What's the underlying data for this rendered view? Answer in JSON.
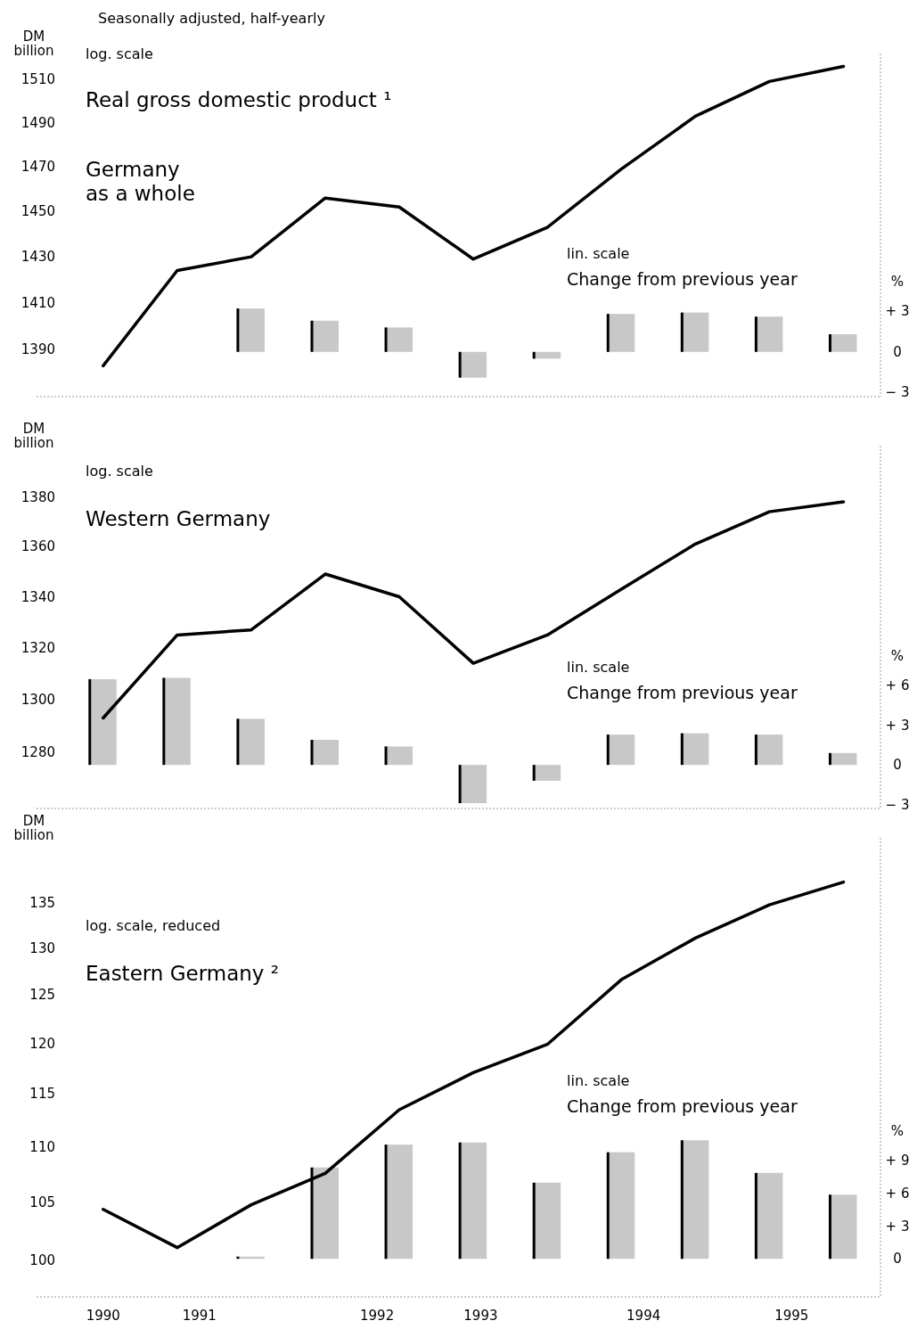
{
  "chart_data": [
    {
      "type": "line",
      "title": "Real gross domestic product ¹",
      "subtitle": "Germany\nas a whole",
      "ylabel": "DM\nbillion",
      "y2label": "%",
      "log": "y",
      "tick_labels": "y",
      "annotations": [
        "log. scale",
        "lin. scale",
        "Change from previous year",
        "Seasonally adjusted, half-yearly"
      ],
      "xlim": [
        1989.8,
        1995.5
      ],
      "ylim": [
        1370,
        1522
      ],
      "yticks": [
        1390,
        1410,
        1430,
        1450,
        1470,
        1490,
        1510
      ],
      "y2lim": [
        -3.3,
        22
      ],
      "y2ticks": [
        {
          "value": -3,
          "label": "− 3"
        },
        {
          "value": 0,
          "label": "0"
        },
        {
          "value": 3,
          "label": "+ 3"
        }
      ],
      "series": [
        {
          "color": "#000000",
          "x": [
            1990.25,
            1990.75,
            1991.25,
            1991.75,
            1992.25,
            1992.75,
            1993.25,
            1993.75,
            1994.25,
            1994.75,
            1995.25
          ],
          "values": [
            1383,
            1424,
            1430,
            1456,
            1452,
            1429,
            1443,
            1469,
            1493,
            1509,
            1516
          ]
        },
        {
          "type": "bar",
          "axis": "y2",
          "color": "#c8c8c8",
          "x": [
            1991.25,
            1991.75,
            1992.25,
            1992.75,
            1993.25,
            1993.75,
            1994.25,
            1994.75,
            1995.25
          ],
          "values": [
            3.2,
            2.3,
            1.8,
            -1.9,
            -0.5,
            2.8,
            2.9,
            2.6,
            1.3
          ]
        }
      ]
    },
    {
      "type": "line",
      "title": "Western Germany",
      "ylabel": "DM\nbillion",
      "y2label": "%",
      "log": "y",
      "tick_labels": "y",
      "annotations": [
        "log. scale",
        "lin. scale",
        "Change from previous year"
      ],
      "xlim": [
        1989.8,
        1995.5
      ],
      "ylim": [
        1259,
        1401
      ],
      "yticks": [
        1280,
        1300,
        1320,
        1340,
        1360,
        1380
      ],
      "y2lim": [
        -3.3,
        24.2
      ],
      "y2ticks": [
        {
          "value": -3,
          "label": "− 3"
        },
        {
          "value": 0,
          "label": "0"
        },
        {
          "value": 3,
          "label": "+ 3"
        },
        {
          "value": 6,
          "label": "+ 6"
        }
      ],
      "series": [
        {
          "color": "#000000",
          "x": [
            1990.25,
            1990.75,
            1991.25,
            1991.75,
            1992.25,
            1992.75,
            1993.25,
            1993.75,
            1994.25,
            1994.75,
            1995.25
          ],
          "values": [
            1293,
            1325,
            1327,
            1349,
            1340,
            1314,
            1325,
            1343,
            1361,
            1374,
            1378
          ]
        },
        {
          "type": "bar",
          "axis": "y2",
          "color": "#c8c8c8",
          "x": [
            1990.25,
            1990.75,
            1991.25,
            1991.75,
            1992.25,
            1992.75,
            1993.25,
            1993.75,
            1994.25,
            1994.75,
            1995.25
          ],
          "values": [
            6.5,
            6.6,
            3.5,
            1.9,
            1.4,
            -2.9,
            -1.2,
            2.3,
            2.4,
            2.3,
            0.9
          ]
        }
      ]
    },
    {
      "type": "line",
      "title": "Eastern Germany ²",
      "ylabel": "DM\nbillion",
      "y2label": "%",
      "log": "y",
      "annotations": [
        "log. scale, reduced",
        "lin. scale",
        "Change from previous year"
      ],
      "xlim": [
        1989.8,
        1995.5
      ],
      "xticks": [
        {
          "value": 1990.25,
          "label": "1990"
        },
        {
          "value": 1990.9,
          "label": "1991"
        },
        {
          "value": 1992.1,
          "label": "1992"
        },
        {
          "value": 1992.8,
          "label": "1993"
        },
        {
          "value": 1993.9,
          "label": "1994"
        },
        {
          "value": 1994.9,
          "label": "1995"
        }
      ],
      "ylim": [
        97,
        142.6
      ],
      "yticks": [
        100,
        105,
        110,
        115,
        120,
        125,
        130,
        135
      ],
      "y2lim": [
        -3.5,
        38.7
      ],
      "y2ticks": [
        {
          "value": 0,
          "label": "0"
        },
        {
          "value": 3,
          "label": "+ 3"
        },
        {
          "value": 6,
          "label": "+ 6"
        },
        {
          "value": 9,
          "label": "+ 9"
        }
      ],
      "series": [
        {
          "color": "#000000",
          "x": [
            1990.25,
            1990.75,
            1991.25,
            1991.75,
            1992.25,
            1992.75,
            1993.25,
            1993.75,
            1994.25,
            1994.75,
            1995.25
          ],
          "values": [
            104.4,
            101.1,
            104.8,
            107.6,
            113.5,
            117.1,
            119.9,
            126.6,
            131.1,
            134.8,
            137.4
          ]
        },
        {
          "type": "bar",
          "axis": "y2",
          "color": "#c8c8c8",
          "x": [
            1991.25,
            1991.75,
            1992.25,
            1992.75,
            1993.25,
            1993.75,
            1994.25,
            1994.75,
            1995.25
          ],
          "values": [
            0.2,
            8.4,
            10.5,
            10.7,
            7.0,
            9.8,
            10.9,
            7.9,
            5.9
          ]
        }
      ]
    }
  ]
}
